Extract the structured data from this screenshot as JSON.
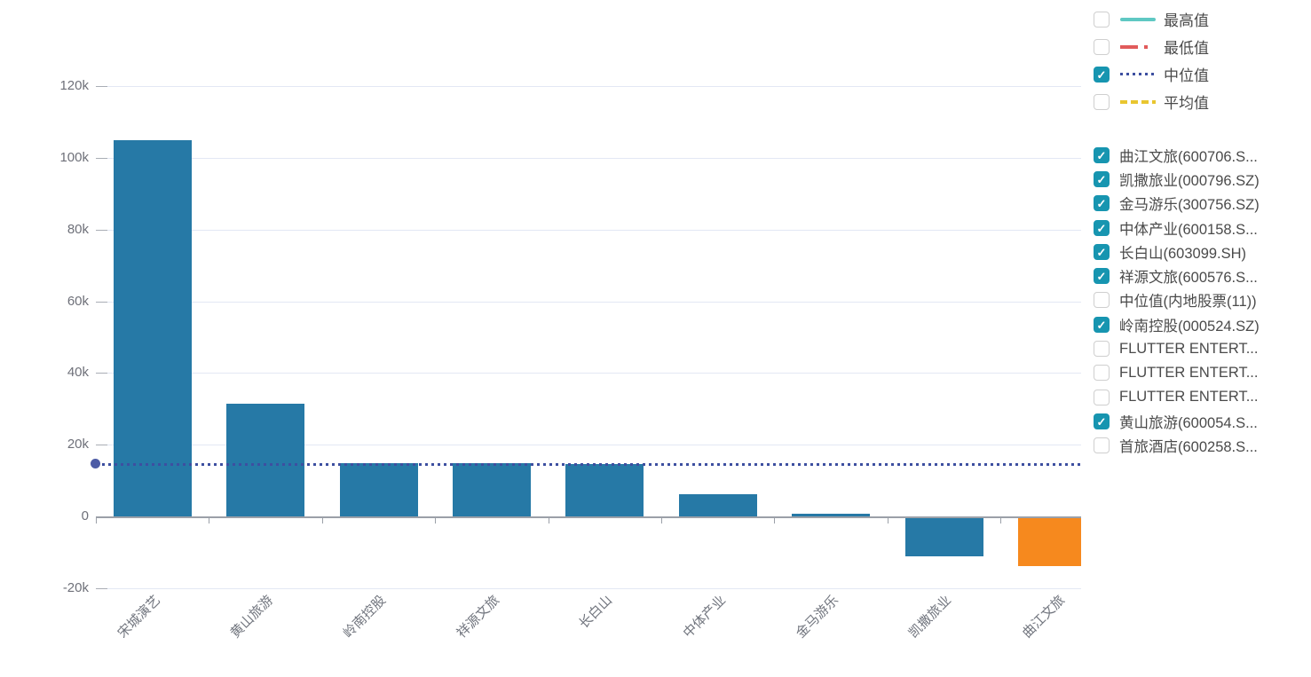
{
  "colors": {
    "bar_blue": "#2679A6",
    "bar_orange": "#F6891E",
    "median_line": "#3D4FA0",
    "median_dot": "#4D5CA6",
    "checkbox_checked": "#1795B0",
    "grid_line": "#E3E8F4",
    "axis_line": "#9BA0A8",
    "axis_text": "#6E7079",
    "legend_text": "#4A4A4A"
  },
  "top_legend": {
    "items": [
      {
        "label": "最高值",
        "checked": false,
        "line_style": "solid",
        "color": "#5FC8C3"
      },
      {
        "label": "最低值",
        "checked": false,
        "line_style": "dashdot",
        "color": "#E15B5B"
      },
      {
        "label": "中位值",
        "checked": true,
        "line_style": "dotted",
        "color": "#3D4FA0"
      },
      {
        "label": "平均值",
        "checked": false,
        "line_style": "dashed",
        "color": "#E9C62F"
      }
    ]
  },
  "series_legend": {
    "items": [
      {
        "label": "曲江文旅(600706.S...",
        "checked": true
      },
      {
        "label": "凯撒旅业(000796.SZ)",
        "checked": true
      },
      {
        "label": "金马游乐(300756.SZ)",
        "checked": true
      },
      {
        "label": "中体产业(600158.S...",
        "checked": true
      },
      {
        "label": "长白山(603099.SH)",
        "checked": true
      },
      {
        "label": "祥源文旅(600576.S...",
        "checked": true
      },
      {
        "label": "中位值(内地股票(11))",
        "checked": false
      },
      {
        "label": "岭南控股(000524.SZ)",
        "checked": true
      },
      {
        "label": "FLUTTER ENTERT...",
        "checked": false
      },
      {
        "label": "FLUTTER ENTERT...",
        "checked": false
      },
      {
        "label": "FLUTTER ENTERT...",
        "checked": false
      },
      {
        "label": "黄山旅游(600054.S...",
        "checked": true
      },
      {
        "label": "首旅酒店(600258.S...",
        "checked": false
      }
    ]
  },
  "chart_data": {
    "type": "bar",
    "categories": [
      "宋城演艺",
      "黄山旅游",
      "岭南控股",
      "祥源文旅",
      "长白山",
      "中体产业",
      "金马游乐",
      "凯撒旅业",
      "曲江文旅"
    ],
    "values": [
      105000,
      31400,
      14900,
      14800,
      14700,
      6200,
      700,
      -10600,
      -13400
    ],
    "bar_colors": [
      "#2679A6",
      "#2679A6",
      "#2679A6",
      "#2679A6",
      "#2679A6",
      "#2679A6",
      "#2679A6",
      "#2679A6",
      "#F6891E"
    ],
    "median_line": {
      "label": "中位值",
      "value": 14700
    },
    "y_axis": {
      "ticks": [
        {
          "label": "120k",
          "value": 120000
        },
        {
          "label": "100k",
          "value": 100000
        },
        {
          "label": "80k",
          "value": 80000
        },
        {
          "label": "60k",
          "value": 60000
        },
        {
          "label": "40k",
          "value": 40000
        },
        {
          "label": "20k",
          "value": 20000
        },
        {
          "label": "0",
          "value": 0
        },
        {
          "label": "-20k",
          "value": -20000
        }
      ],
      "range": [
        -20000,
        120000
      ]
    },
    "grid": true,
    "legend_position": "right",
    "title": "",
    "xlabel": "",
    "ylabel": ""
  }
}
